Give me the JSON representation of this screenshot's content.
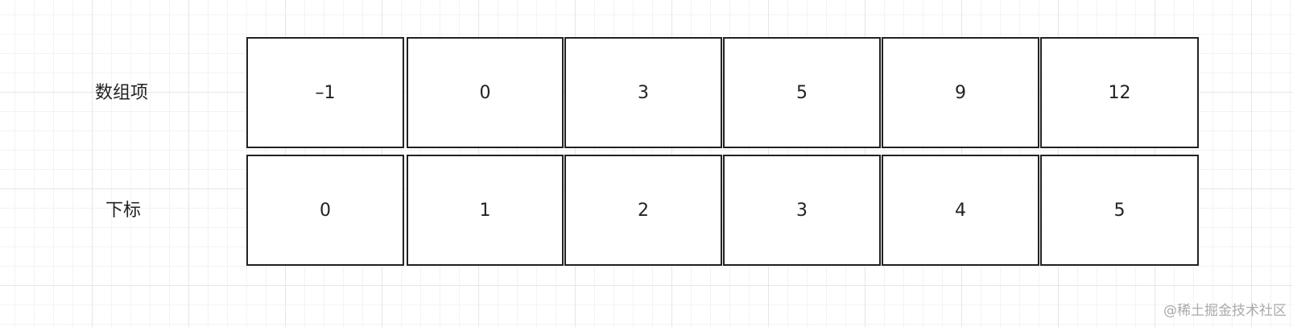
{
  "rows": [
    {
      "label": "数组项",
      "cells": [
        "–1",
        "0",
        "3",
        "5",
        "9",
        "12"
      ]
    },
    {
      "label": "下标",
      "cells": [
        "0",
        "1",
        "2",
        "3",
        "4",
        "5"
      ]
    }
  ],
  "watermark": "@稀土掘金技术社区"
}
